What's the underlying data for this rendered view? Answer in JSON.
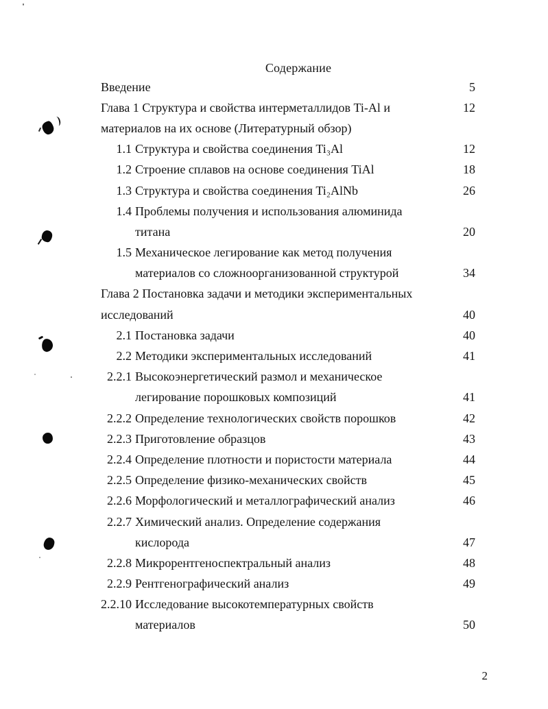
{
  "title": "Содержание",
  "page_number": "2",
  "toc": {
    "rows": [
      {
        "num": "",
        "text": "Введение",
        "page": "5",
        "style": "chapter"
      },
      {
        "num": "",
        "text": "Глава 1 Структура и свойства интерметаллидов Ti-Al и",
        "page": "12",
        "style": "chapter"
      },
      {
        "num": "",
        "text": "материалов на их основе (Литературный обзор)",
        "page": "",
        "style": "chapter"
      },
      {
        "num": "1.1",
        "text": "Структура и свойства соединения Ti₃Al",
        "page": "12",
        "style": "item"
      },
      {
        "num": "1.2",
        "text": "Строение сплавов на основе соединения TiAl",
        "page": "18",
        "style": "item"
      },
      {
        "num": "1.3",
        "text": "Структура и свойства соединения Ti₂AlNb",
        "page": "26",
        "style": "item"
      },
      {
        "num": "1.4",
        "text": "Проблемы получения и использования алюминида",
        "page": "",
        "style": "item"
      },
      {
        "num": "",
        "text": "титана",
        "page": "20",
        "style": "cont"
      },
      {
        "num": "1.5",
        "text": "Механическое легирование как метод получения",
        "page": "",
        "style": "item"
      },
      {
        "num": "",
        "text": "материалов со сложноорганизованной структурой",
        "page": "34",
        "style": "cont"
      },
      {
        "num": "",
        "text": "Глава 2 Постановка задачи и методики экспериментальных",
        "page": "",
        "style": "chapter"
      },
      {
        "num": "",
        "text": "исследований",
        "page": "40",
        "style": "chapter"
      },
      {
        "num": "2.1",
        "text": "Постановка задачи",
        "page": "40",
        "style": "item"
      },
      {
        "num": "2.2",
        "text": "Методики экспериментальных исследований",
        "page": "41",
        "style": "item"
      },
      {
        "num": "2.2.1",
        "text": "Высокоэнергетический размол и механическое",
        "page": "",
        "style": "item"
      },
      {
        "num": "",
        "text": "легирование порошковых композиций",
        "page": "41",
        "style": "cont"
      },
      {
        "num": "2.2.2",
        "text": "Определение технологических свойств порошков",
        "page": "42",
        "style": "item"
      },
      {
        "num": "2.2.3",
        "text": "Приготовление образцов",
        "page": "43",
        "style": "item"
      },
      {
        "num": "2.2.4",
        "text": "Определение плотности и пористости материала",
        "page": "44",
        "style": "item"
      },
      {
        "num": "2.2.5",
        "text": "Определение физико-механических свойств",
        "page": "45",
        "style": "item"
      },
      {
        "num": "2.2.6",
        "text": "Морфологический и металлографический анализ",
        "page": "46",
        "style": "item"
      },
      {
        "num": "2.2.7",
        "text": "Химический анализ. Определение содержания",
        "page": "",
        "style": "item"
      },
      {
        "num": "",
        "text": "кислорода",
        "page": "47",
        "style": "cont"
      },
      {
        "num": "2.2.8",
        "text": "Микрорентгеноспектральный анализ",
        "page": "48",
        "style": "item"
      },
      {
        "num": "2.2.9",
        "text": "Рентгенографический анализ",
        "page": "49",
        "style": "item"
      },
      {
        "num": "2.2.10",
        "text": "Исследование высокотемпературных свойств",
        "page": "",
        "style": "item"
      },
      {
        "num": "",
        "text": "материалов",
        "page": "50",
        "style": "cont"
      }
    ]
  }
}
